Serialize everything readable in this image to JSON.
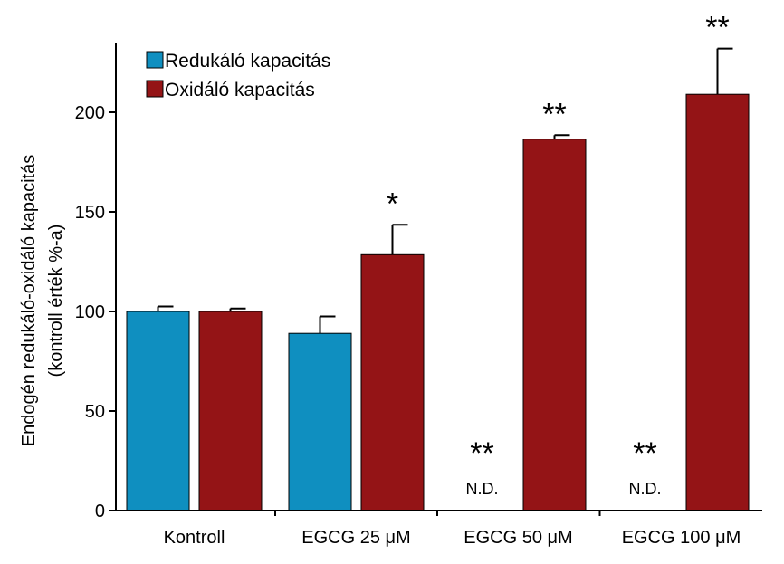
{
  "chart_data": {
    "type": "bar",
    "categories": [
      "Kontroll",
      "EGCG 25 μM",
      "EGCG 50 μM",
      "EGCG 100 μM"
    ],
    "series": [
      {
        "name": "Redukáló kapacitás",
        "color": "#0f8fc0",
        "values": [
          100,
          89,
          null,
          null
        ],
        "errors": [
          2.5,
          8.5,
          null,
          null
        ],
        "nd_labels": [
          "",
          "",
          "N.D.",
          "N.D."
        ],
        "significance": [
          "",
          "",
          "**",
          "**"
        ]
      },
      {
        "name": "Oxidáló kapacitás",
        "color": "#941416",
        "values": [
          100,
          128.5,
          186.5,
          209
        ],
        "errors": [
          1.5,
          15,
          2,
          23
        ],
        "nd_labels": [
          "",
          "",
          "",
          ""
        ],
        "significance": [
          "",
          "*",
          "**",
          "**"
        ]
      }
    ],
    "ylabel_line1": "Endogén redukáló-oxidáló kapacitás",
    "ylabel_line2": "(kontroll érték %-a)",
    "xlabel": "",
    "ylim": [
      0,
      235
    ],
    "yticks": [
      0,
      50,
      100,
      150,
      200
    ],
    "grid": false,
    "legend": "top-left"
  }
}
